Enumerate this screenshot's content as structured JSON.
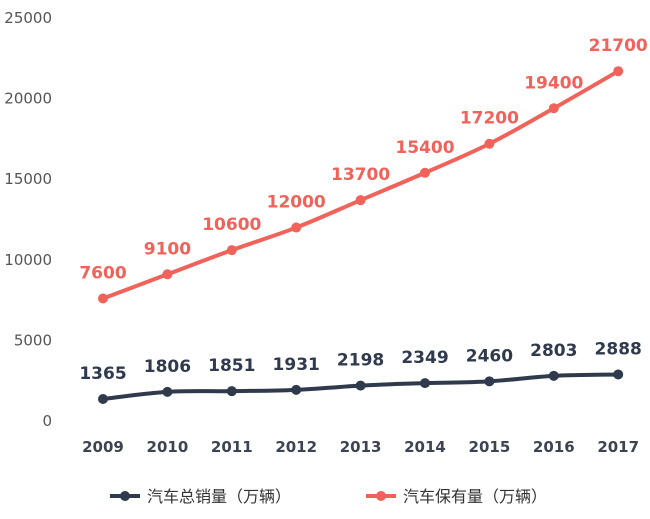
{
  "chart_data": {
    "type": "line",
    "categories": [
      "2009",
      "2010",
      "2011",
      "2012",
      "2013",
      "2014",
      "2015",
      "2016",
      "2017"
    ],
    "series": [
      {
        "name": "汽车总销量（万辆）",
        "color": "#2f3a4d",
        "values": [
          1365,
          1806,
          1851,
          1931,
          2198,
          2349,
          2460,
          2803,
          2888
        ]
      },
      {
        "name": "汽车保有量（万辆）",
        "color": "#f0625a",
        "values": [
          7600,
          9100,
          10600,
          12000,
          13700,
          15400,
          17200,
          19400,
          21700
        ]
      }
    ],
    "ylim": [
      0,
      25000
    ],
    "yticks": [
      0,
      5000,
      10000,
      15000,
      20000,
      25000
    ],
    "xlabel": "",
    "ylabel": "",
    "grid": false,
    "legend_position": "bottom-center"
  }
}
